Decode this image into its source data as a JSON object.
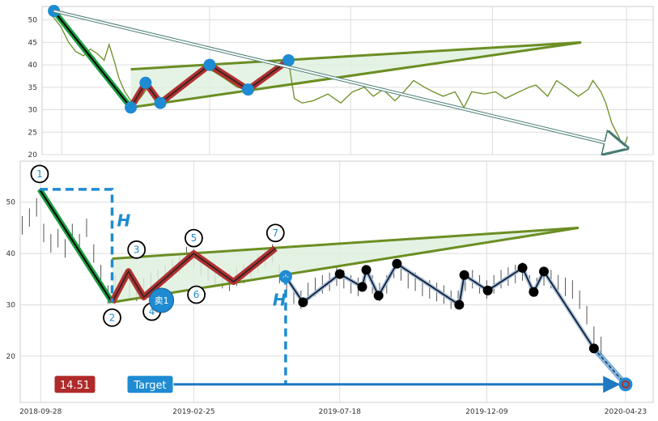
{
  "chart_data": [
    {
      "type": "line",
      "panel": "top",
      "grid": true,
      "ylim": [
        20,
        53
      ],
      "yticks": [
        20,
        25,
        30,
        35,
        40,
        45,
        50
      ],
      "x_range": [
        "2018-09-08",
        "2020-05-20"
      ],
      "series": [
        {
          "values": [
            [
              "2018-09-15",
              51.5
            ],
            [
              "2018-09-20",
              50.5
            ],
            [
              "2018-09-27",
              48.5
            ],
            [
              "2018-10-05",
              45
            ],
            [
              "2018-10-12",
              43
            ],
            [
              "2018-10-20",
              42
            ],
            [
              "2018-10-27",
              43.5
            ],
            [
              "2018-11-03",
              42.5
            ],
            [
              "2018-11-10",
              41
            ],
            [
              "2018-11-15",
              44.5
            ],
            [
              "2018-11-20",
              41
            ],
            [
              "2018-11-25",
              37
            ],
            [
              "2018-12-01",
              34
            ],
            [
              "2018-12-10",
              31
            ],
            [
              "2018-12-18",
              33
            ],
            [
              "2018-12-26",
              35.5
            ],
            [
              "2019-01-02",
              33
            ],
            [
              "2019-01-09",
              32
            ],
            [
              "2019-01-18",
              34
            ],
            [
              "2019-01-28",
              36
            ],
            [
              "2019-02-08",
              37
            ],
            [
              "2019-02-20",
              39.5
            ],
            [
              "2019-03-01",
              38.5
            ],
            [
              "2019-03-12",
              37
            ],
            [
              "2019-03-25",
              35
            ],
            [
              "2019-04-05",
              34.5
            ],
            [
              "2019-04-16",
              36
            ],
            [
              "2019-04-28",
              38
            ],
            [
              "2019-05-08",
              40
            ],
            [
              "2019-05-16",
              41
            ],
            [
              "2019-05-22",
              32.5
            ],
            [
              "2019-05-30",
              31.5
            ],
            [
              "2019-06-10",
              32
            ],
            [
              "2019-06-25",
              33.5
            ],
            [
              "2019-07-08",
              31.5
            ],
            [
              "2019-07-20",
              34
            ],
            [
              "2019-08-01",
              35
            ],
            [
              "2019-08-10",
              33
            ],
            [
              "2019-08-20",
              34.5
            ],
            [
              "2019-09-01",
              32
            ],
            [
              "2019-09-10",
              34
            ],
            [
              "2019-09-20",
              36.5
            ],
            [
              "2019-10-01",
              35
            ],
            [
              "2019-10-10",
              34
            ],
            [
              "2019-10-20",
              33
            ],
            [
              "2019-11-01",
              34
            ],
            [
              "2019-11-10",
              30.5
            ],
            [
              "2019-11-18",
              34
            ],
            [
              "2019-12-01",
              33.5
            ],
            [
              "2019-12-12",
              34
            ],
            [
              "2019-12-22",
              32.5
            ],
            [
              "2020-01-05",
              34
            ],
            [
              "2020-01-15",
              35
            ],
            [
              "2020-01-22",
              35.5
            ],
            [
              "2020-02-03",
              33
            ],
            [
              "2020-02-12",
              36.5
            ],
            [
              "2020-02-22",
              35
            ],
            [
              "2020-03-05",
              33
            ],
            [
              "2020-03-15",
              34.5
            ],
            [
              "2020-03-20",
              36.5
            ],
            [
              "2020-03-28",
              34
            ],
            [
              "2020-04-02",
              31.5
            ],
            [
              "2020-04-08",
              27
            ],
            [
              "2020-04-15",
              24
            ],
            [
              "2020-04-20",
              21.5
            ],
            [
              "2020-04-24",
              24
            ]
          ]
        }
      ],
      "pattern_points": [
        [
          "2018-09-20",
          52
        ],
        [
          "2018-12-07",
          30.5
        ],
        [
          "2018-12-22",
          36
        ],
        [
          "2019-01-06",
          31.5
        ],
        [
          "2019-02-25",
          40
        ],
        [
          "2019-04-05",
          34.5
        ],
        [
          "2019-05-16",
          41
        ]
      ],
      "projection_arrow": [
        [
          "2018-09-20",
          52
        ],
        [
          "2020-04-23",
          21.5
        ]
      ],
      "triangle": {
        "upper": [
          [
            "2018-12-07",
            39
          ],
          [
            "2020-03-08",
            45
          ]
        ],
        "lower": [
          [
            "2018-12-07",
            30.5
          ],
          [
            "2020-03-08",
            45
          ]
        ]
      }
    },
    {
      "type": "line",
      "panel": "bottom",
      "grid": true,
      "ylim": [
        11,
        58
      ],
      "yticks": [
        20,
        30,
        40,
        50
      ],
      "x_range": [
        "2018-09-08",
        "2020-05-20"
      ],
      "xticks": [
        "2018-09-28",
        "2019-02-25",
        "2019-07-18",
        "2019-12-09",
        "2020-04-23"
      ],
      "pattern": {
        "points": [
          {
            "label": "1",
            "date": "2018-09-27",
            "value": 52.5
          },
          {
            "label": "2",
            "date": "2018-12-07",
            "value": 30.5
          },
          {
            "label": "3",
            "date": "2018-12-23",
            "value": 36.5
          },
          {
            "label": "4",
            "date": "2019-01-07",
            "value": 31.5
          },
          {
            "label": "5",
            "date": "2019-02-25",
            "value": 40
          },
          {
            "label": "6",
            "date": "2019-04-05",
            "value": 34.5
          },
          {
            "label": "7",
            "date": "2019-05-16",
            "value": 41
          }
        ],
        "breakout": {
          "date": "2019-05-26",
          "value": 35.5
        }
      },
      "triangle": {
        "upper": [
          [
            "2018-12-07",
            39
          ],
          [
            "2020-03-08",
            45
          ]
        ],
        "lower": [
          [
            "2018-12-07",
            30.5
          ],
          [
            "2020-03-08",
            45
          ]
        ]
      },
      "after_path": [
        [
          "2019-05-26",
          35.5
        ],
        [
          "2019-06-12",
          30.5
        ],
        [
          "2019-07-18",
          36
        ],
        [
          "2019-08-09",
          33.5
        ],
        [
          "2019-08-13",
          36.8
        ],
        [
          "2019-08-25",
          31.8
        ],
        [
          "2019-09-12",
          38
        ],
        [
          "2019-11-12",
          30
        ],
        [
          "2019-11-17",
          35.8
        ],
        [
          "2019-12-10",
          32.8
        ],
        [
          "2020-01-13",
          37.2
        ],
        [
          "2020-01-24",
          32.5
        ],
        [
          "2020-02-03",
          36.5
        ],
        [
          "2020-03-23",
          21.5
        ],
        [
          "2020-04-23",
          14.5
        ]
      ],
      "price_bars": [
        [
          "2018-09-10",
          45.5
        ],
        [
          "2018-09-17",
          47
        ],
        [
          "2018-09-24",
          49
        ],
        [
          "2018-10-01",
          44
        ],
        [
          "2018-10-08",
          42
        ],
        [
          "2018-10-15",
          43
        ],
        [
          "2018-10-22",
          41
        ],
        [
          "2018-10-29",
          44
        ],
        [
          "2018-11-05",
          42
        ],
        [
          "2018-11-12",
          45
        ],
        [
          "2018-11-19",
          40
        ],
        [
          "2018-11-26",
          36
        ],
        [
          "2018-12-03",
          32
        ],
        [
          "2018-12-10",
          34
        ],
        [
          "2018-12-17",
          35
        ],
        [
          "2018-12-24",
          33
        ],
        [
          "2018-12-31",
          32.5
        ],
        [
          "2019-01-07",
          33.5
        ],
        [
          "2019-01-14",
          34.5
        ],
        [
          "2019-01-21",
          35
        ],
        [
          "2019-01-28",
          36
        ],
        [
          "2019-02-04",
          37
        ],
        [
          "2019-02-11",
          38
        ],
        [
          "2019-02-18",
          39.5
        ],
        [
          "2019-02-25",
          39
        ],
        [
          "2019-03-04",
          37.5
        ],
        [
          "2019-03-11",
          36.5
        ],
        [
          "2019-03-18",
          35.5
        ],
        [
          "2019-03-25",
          35
        ],
        [
          "2019-04-01",
          34.5
        ],
        [
          "2019-04-08",
          35.5
        ],
        [
          "2019-04-15",
          36
        ],
        [
          "2019-04-22",
          37
        ],
        [
          "2019-04-29",
          38
        ],
        [
          "2019-05-06",
          39
        ],
        [
          "2019-05-13",
          40
        ],
        [
          "2019-05-20",
          36
        ],
        [
          "2019-05-27",
          34
        ],
        [
          "2019-06-03",
          32
        ],
        [
          "2019-06-10",
          31
        ],
        [
          "2019-06-17",
          32.5
        ],
        [
          "2019-06-24",
          33.5
        ],
        [
          "2019-07-01",
          34
        ],
        [
          "2019-07-08",
          34.5
        ],
        [
          "2019-07-15",
          35.5
        ],
        [
          "2019-07-22",
          35
        ],
        [
          "2019-07-29",
          34
        ],
        [
          "2019-08-05",
          33.5
        ],
        [
          "2019-08-12",
          36
        ],
        [
          "2019-08-19",
          34
        ],
        [
          "2019-08-26",
          32.5
        ],
        [
          "2019-09-02",
          34
        ],
        [
          "2019-09-09",
          37
        ],
        [
          "2019-09-16",
          36.5
        ],
        [
          "2019-09-23",
          35
        ],
        [
          "2019-09-30",
          34.5
        ],
        [
          "2019-10-07",
          33.5
        ],
        [
          "2019-10-14",
          33
        ],
        [
          "2019-10-21",
          32.5
        ],
        [
          "2019-10-28",
          32
        ],
        [
          "2019-11-04",
          31
        ],
        [
          "2019-11-11",
          31
        ],
        [
          "2019-11-18",
          34.5
        ],
        [
          "2019-11-25",
          35
        ],
        [
          "2019-12-02",
          34
        ],
        [
          "2019-12-09",
          33
        ],
        [
          "2019-12-16",
          34
        ],
        [
          "2019-12-23",
          35
        ],
        [
          "2019-12-30",
          35.5
        ],
        [
          "2020-01-06",
          36
        ],
        [
          "2020-01-13",
          36.5
        ],
        [
          "2020-01-20",
          34
        ],
        [
          "2020-01-27",
          33.5
        ],
        [
          "2020-02-03",
          35.5
        ],
        [
          "2020-02-10",
          35
        ],
        [
          "2020-02-17",
          34
        ],
        [
          "2020-02-24",
          33.5
        ],
        [
          "2020-03-02",
          33
        ],
        [
          "2020-03-09",
          31
        ],
        [
          "2020-03-16",
          28
        ],
        [
          "2020-03-23",
          24
        ],
        [
          "2020-03-30",
          22
        ]
      ],
      "h_measure": {
        "top": 52.5,
        "bottom": 30.5,
        "x": "2018-12-07",
        "x_start": "2018-09-27",
        "repeat_x": "2019-05-26"
      },
      "target_arrow": {
        "from": "2019-01-15",
        "to": "2020-04-16",
        "value": 14.5
      },
      "labels": {
        "h1": "H",
        "h2": "H",
        "sell_badge": "卖1",
        "price_badge": "14.51",
        "target_badge": "Target"
      }
    }
  ],
  "colors": {
    "green_line": "#6b8e23",
    "green_fill": "#dff0df",
    "bar_green": "#1aa040",
    "red_zigzag": "#b03030",
    "blue": "#1e8bd2",
    "dark": "#000000",
    "price_badge_bg": "#b02a2a",
    "target_badge_bg": "#1e8bd2",
    "grid": "#dddddd"
  }
}
